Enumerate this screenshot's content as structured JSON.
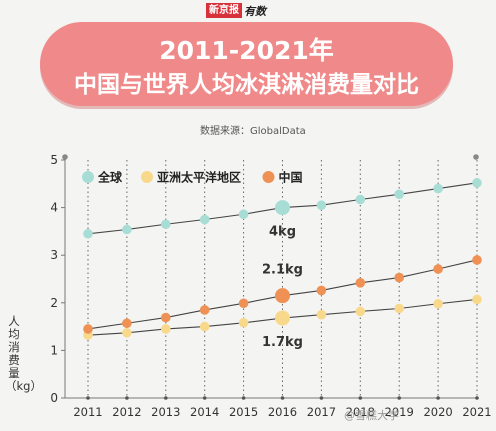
{
  "brand": {
    "main": "新京报",
    "sub": "有数"
  },
  "title_line1": "2011-2021年",
  "title_line2": "中国与世界人均冰淇淋消费量对比",
  "source": "数据来源：GlobalData",
  "watermark": "@雪糕大学",
  "colors": {
    "banner": "#f08a8a",
    "global": "#a7ddd5",
    "apac": "#f8d98c",
    "china": "#ef9155"
  },
  "chart_data": {
    "type": "line",
    "categories": [
      "2011",
      "2012",
      "2013",
      "2014",
      "2015",
      "2016",
      "2017",
      "2018",
      "2019",
      "2020",
      "2021"
    ],
    "ylabel": "人均消费量（kg）",
    "ylim": [
      0,
      5
    ],
    "yticks": [
      0,
      1,
      2,
      3,
      4,
      5
    ],
    "grid": "vertical dotted",
    "legend_position": "top-left",
    "series": [
      {
        "name": "全球",
        "color": "#a7ddd5",
        "values": [
          3.45,
          3.54,
          3.65,
          3.75,
          3.86,
          4.0,
          4.05,
          4.17,
          4.28,
          4.4,
          4.52
        ]
      },
      {
        "name": "亚洲太平洋地区",
        "color": "#f8d98c",
        "values": [
          1.32,
          1.37,
          1.45,
          1.5,
          1.58,
          1.68,
          1.75,
          1.82,
          1.88,
          1.98,
          2.07
        ]
      },
      {
        "name": "中国",
        "color": "#ef9155",
        "values": [
          1.45,
          1.57,
          1.69,
          1.85,
          1.99,
          2.15,
          2.26,
          2.42,
          2.53,
          2.71,
          2.9
        ]
      }
    ],
    "annotations": [
      {
        "series": 0,
        "index": 5,
        "text": "4kg"
      },
      {
        "series": 2,
        "index": 5,
        "text": "2.1kg"
      },
      {
        "series": 1,
        "index": 5,
        "text": "1.7kg"
      }
    ]
  }
}
